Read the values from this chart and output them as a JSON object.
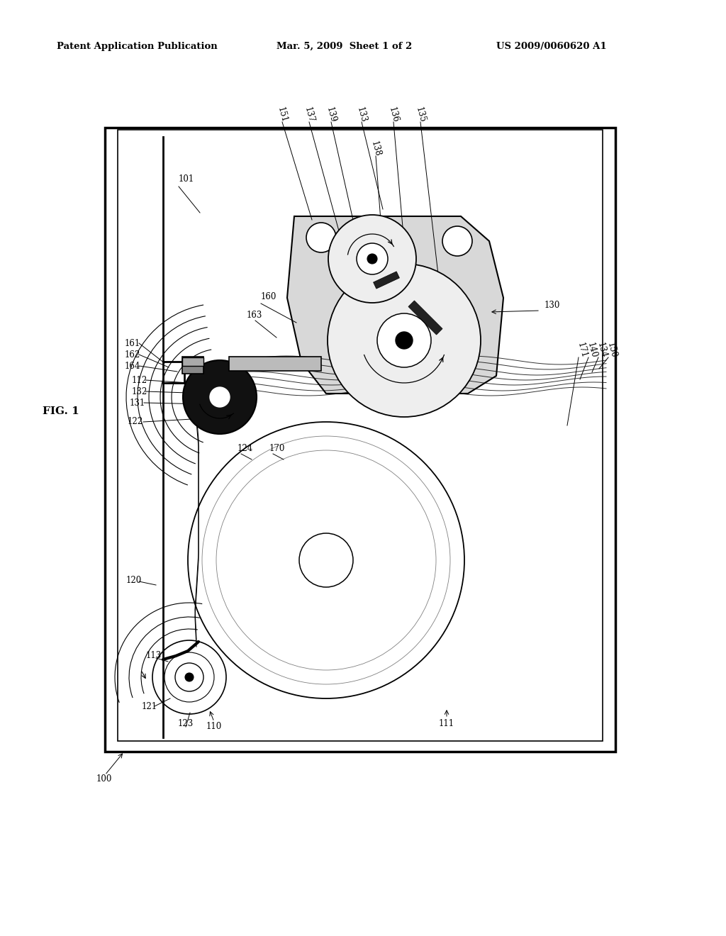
{
  "bg_color": "#ffffff",
  "header_left": "Patent Application Publication",
  "header_mid": "Mar. 5, 2009  Sheet 1 of 2",
  "header_right": "US 2009/0060620 A1",
  "fig_label": "FIG. 1",
  "line_color": "#000000",
  "gray_fill": "#d8d8d8",
  "light_gray": "#eeeeee"
}
